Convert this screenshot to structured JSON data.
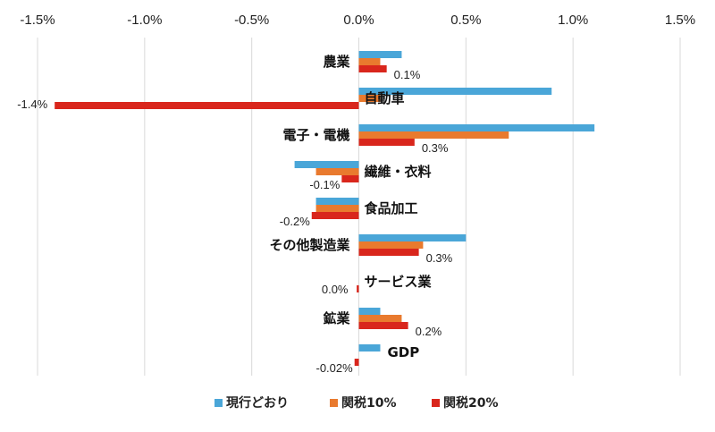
{
  "chart_data": {
    "type": "bar",
    "orientation": "horizontal",
    "title": "",
    "xlabel": "",
    "ylabel": "",
    "xlim": [
      -0.015,
      0.015
    ],
    "x_ticks": [
      "-1.5%",
      "-1.0%",
      "-0.5%",
      "0.0%",
      "0.5%",
      "1.0%",
      "1.5%"
    ],
    "x_tick_values": [
      -0.015,
      -0.01,
      -0.005,
      0,
      0.005,
      0.01,
      0.015
    ],
    "grid": true,
    "legend_position": "bottom",
    "categories": [
      "農業",
      "自動車",
      "電子・電機",
      "繊維・衣料",
      "食品加工",
      "その他製造業",
      "サービス業",
      "鉱業",
      "GDP"
    ],
    "series": [
      {
        "name": "現行どおり",
        "color": "#4AA6D8",
        "values": [
          0.002,
          0.009,
          0.011,
          -0.003,
          -0.002,
          0.005,
          0.0,
          0.001,
          0.001
        ]
      },
      {
        "name": "関税10%",
        "color": "#E97A2E",
        "values": [
          0.001,
          0.001,
          0.007,
          -0.002,
          -0.002,
          0.003,
          0.0,
          0.002,
          0.0
        ]
      },
      {
        "name": "関税20%",
        "color": "#D9261C",
        "values": [
          0.0013,
          -0.0142,
          0.0026,
          -0.0008,
          -0.0022,
          0.0028,
          -0.0001,
          0.0023,
          -0.0002
        ]
      }
    ],
    "data_labels": [
      "0.1%",
      "-1.4%",
      "0.3%",
      "-0.1%",
      "-0.2%",
      "0.3%",
      "0.0%",
      "0.2%",
      "-0.02%"
    ]
  }
}
